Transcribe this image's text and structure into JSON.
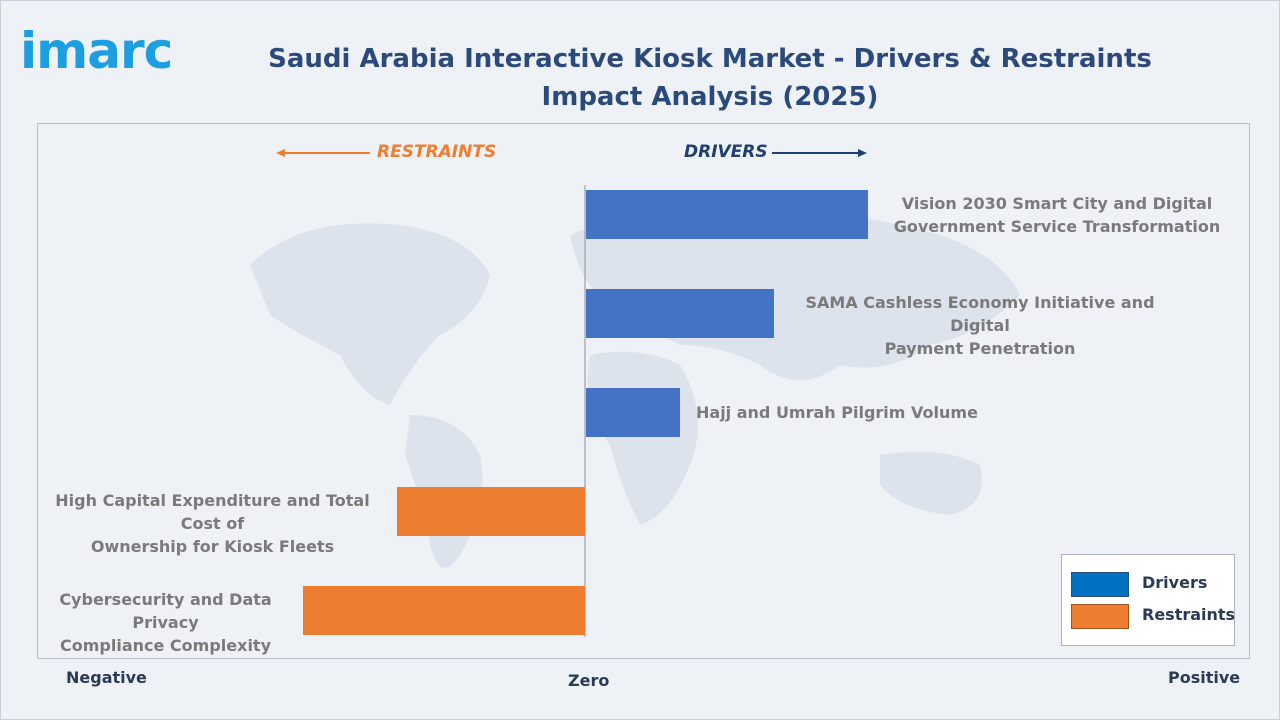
{
  "logo": {
    "text": "imarc"
  },
  "header": {
    "title": "Saudi Arabia Interactive Kiosk Market - Drivers & Restraints Impact Analysis (2025)"
  },
  "direction_labels": {
    "restraints": "RESTRAINTS",
    "drivers": "DRIVERS"
  },
  "axis": {
    "negative": "Negative",
    "zero": "Zero",
    "positive": "Positive"
  },
  "legend": {
    "drivers": "Drivers",
    "restraints": "Restraints"
  },
  "colors": {
    "drivers": "#4472c4",
    "restraints": "#ed7d31",
    "drivers_legend": "#0070c0",
    "title": "#2b4a7a",
    "logo": "#1d9ee0"
  },
  "chart_data": {
    "type": "bar",
    "orientation": "horizontal",
    "title": "Saudi Arabia Interactive Kiosk Market - Drivers & Restraints Impact Analysis (2025)",
    "series": [
      {
        "name": "Drivers",
        "color": "#4472c4"
      },
      {
        "name": "Restraints",
        "color": "#ed7d31"
      }
    ],
    "items": [
      {
        "label_line1": "Vision 2030 Smart City and Digital",
        "label_line2": "Government Service Transformation",
        "value": 3,
        "series": "Drivers"
      },
      {
        "label_line1": "SAMA Cashless Economy Initiative and Digital",
        "label_line2": "Payment Penetration",
        "value": 2,
        "series": "Drivers"
      },
      {
        "label_line1": "Hajj and Umrah Pilgrim Volume",
        "label_line2": "",
        "value": 1,
        "series": "Drivers"
      },
      {
        "label_line1": "High Capital Expenditure and Total Cost of",
        "label_line2": "Ownership for Kiosk Fleets",
        "value": -2,
        "series": "Restraints"
      },
      {
        "label_line1": "Cybersecurity and Data Privacy",
        "label_line2": "Compliance Complexity",
        "value": -3,
        "series": "Restraints"
      }
    ],
    "xlabel": "",
    "ylabel": "",
    "grid": false,
    "legend_position": "bottom-right"
  }
}
